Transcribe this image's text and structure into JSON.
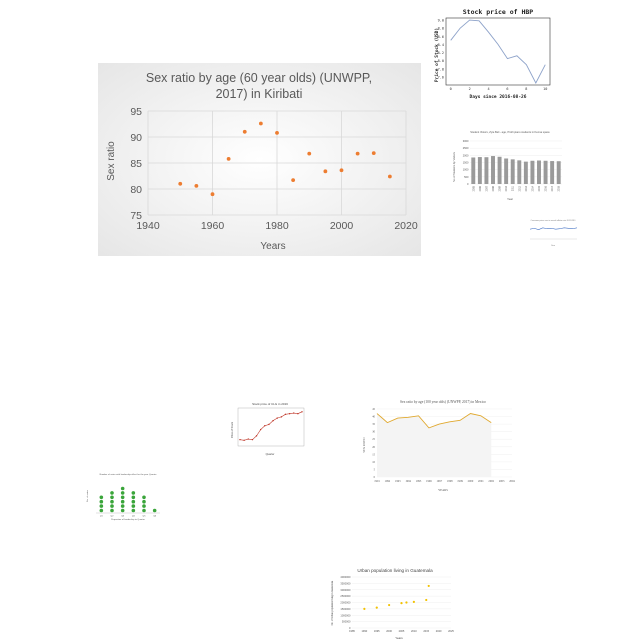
{
  "charts": {
    "kiribati": {
      "title_line1": "Sex ratio by age (60 year olds) (UNWPP,",
      "title_line2": "2017) in Kiribati",
      "xlabel": "Years",
      "ylabel": "Sex ratio",
      "colors": {
        "marker": "#ED7D31",
        "bg_center": "#ffffff",
        "bg_edge": "#e8e8e8",
        "grid": "#d9d9d9",
        "text": "#595959"
      },
      "chart_data": {
        "type": "scatter",
        "x": [
          1950,
          1955,
          1960,
          1965,
          1970,
          1975,
          1980,
          1985,
          1990,
          1995,
          2000,
          2005,
          2010,
          2015
        ],
        "y": [
          81,
          80.6,
          79,
          85.8,
          91,
          92.6,
          90.8,
          81.7,
          86.8,
          83.4,
          83.6,
          86.8,
          86.9,
          82.4
        ],
        "xlim": [
          1940,
          2020
        ],
        "ylim": [
          75,
          95
        ],
        "xticks": [
          1940,
          1960,
          1980,
          2000,
          2020
        ],
        "yticks": [
          75,
          80,
          85,
          90,
          95
        ],
        "grid": true
      }
    },
    "hbp": {
      "title": "Stock price of HBP",
      "xlabel": "Days since 2016-08-26",
      "ylabel": "Price of Stock (USD)",
      "colors": {
        "line": "#8da2c9",
        "axis": "#333333"
      },
      "chart_data": {
        "type": "line",
        "x": [
          0,
          1,
          2,
          3,
          4,
          5,
          6,
          7,
          8,
          9,
          10
        ],
        "y": [
          8.5,
          8.8,
          9.0,
          8.98,
          8.7,
          8.4,
          8.05,
          8.12,
          7.9,
          7.45,
          7.9
        ],
        "xlim": [
          -0.5,
          10.5
        ],
        "ylim": [
          7.4,
          9.05
        ],
        "xticks": [
          0,
          2,
          4,
          6,
          8,
          10
        ],
        "yticks": [
          7.6,
          7.8,
          8.0,
          8.2,
          8.4,
          8.6,
          8.8,
          9.0
        ]
      }
    },
    "gray_bars": {
      "title": "Student Vistors, Zyte Beli - age, Profit piano students in Kenna space",
      "xlabel": "Year",
      "ylabel": "No of Students by Visitors",
      "colors": {
        "bar": "#9a9a9a",
        "grid": "#e2e2e2"
      },
      "chart_data": {
        "type": "bar",
        "categories": [
          "2005",
          "2006",
          "2007",
          "2008",
          "2009",
          "2010",
          "2011",
          "2012",
          "2013",
          "2014",
          "2015",
          "2016",
          "2017",
          "2018"
        ],
        "values": [
          1850,
          1880,
          1870,
          1950,
          1900,
          1780,
          1720,
          1650,
          1560,
          1620,
          1640,
          1620,
          1600,
          1590
        ],
        "ylim": [
          0,
          3000
        ],
        "yticks": [
          0,
          500,
          1000,
          1500,
          2000,
          2500,
          3000
        ]
      }
    },
    "tiny_blue": {
      "title": "Consumer prices rose in annual inflation rate 2012-2019",
      "xlabel": "Year",
      "colors": {
        "line": "#4472c4"
      },
      "chart_data": {
        "type": "line",
        "x": [
          1,
          2,
          3,
          4,
          5,
          6,
          7,
          8,
          9,
          10,
          11,
          12
        ],
        "y": [
          2.1,
          2.3,
          2.0,
          2.4,
          2.2,
          2.3,
          2.1,
          2.2,
          2.4,
          2.3,
          2.2,
          2.4
        ],
        "ylim": [
          0,
          3
        ]
      }
    },
    "fiji": {
      "title": "Stock price of CLG in 2016",
      "xlabel": "Quarter",
      "ylabel": "Price of Stock",
      "colors": {
        "line": "#c0392b",
        "marker": "#c0392b"
      },
      "chart_data": {
        "type": "line",
        "x": [
          0,
          1,
          2,
          3,
          4,
          5,
          6,
          7,
          8,
          9,
          10,
          11,
          12,
          13,
          14,
          15
        ],
        "y": [
          10,
          9.5,
          10.5,
          10,
          13,
          18,
          21,
          22,
          25,
          27,
          28,
          30,
          30.5,
          31,
          30.5,
          32
        ],
        "ylim": [
          5,
          35
        ]
      }
    },
    "mexico": {
      "title": "Sex ratio by age (100 year olds) (UNWPP, 2017) in Mexico",
      "xlabel": "YEARS",
      "ylabel": "SEX RATIO",
      "colors": {
        "line": "#e0a82e",
        "grid": "#e6e6e6",
        "area_top": "#f3f3f3"
      },
      "chart_data": {
        "type": "line",
        "categories": [
          "1991",
          "1992",
          "1993",
          "1994",
          "1995",
          "1996",
          "1997",
          "1998",
          "1999",
          "2000",
          "2001",
          "2002",
          "2003",
          "2004"
        ],
        "values": [
          42,
          36,
          39,
          39.5,
          40.5,
          32.5,
          35,
          36.5,
          37.5,
          42,
          40.5,
          36,
          null,
          null
        ],
        "ylim": [
          0,
          45
        ],
        "yticks": [
          0,
          5,
          10,
          15,
          20,
          25,
          30,
          35,
          40,
          45
        ]
      }
    },
    "green_dots": {
      "title": "Number of votes with leadership effect for the year Quarter",
      "xlabel": "Proportion of leadership to Quarter",
      "ylabel": "No. of votes",
      "colors": {
        "marker": "#3aa53a"
      },
      "chart_data": {
        "type": "scatter",
        "categories": [
          "Q1",
          "Q2",
          "Q3",
          "Q4",
          "Q5",
          "Q6"
        ],
        "values": [
          4,
          5,
          6,
          5,
          4,
          1
        ],
        "ylim": [
          0,
          7
        ]
      }
    },
    "guatemala": {
      "title": "Urban population living in Guatemala",
      "xlabel": "Years",
      "ylabel": "No. of Urban population living in Guatemala",
      "colors": {
        "marker": "#f2c100",
        "grid": "#e4e4e4"
      },
      "chart_data": {
        "type": "scatter",
        "x": [
          1990,
          1995,
          2000,
          2005,
          2007,
          2010,
          2015,
          2016
        ],
        "y": [
          1500000,
          1600000,
          1800000,
          1950000,
          2000000,
          2050000,
          2200000,
          3300000
        ],
        "xlim": [
          1985,
          2025
        ],
        "ylim": [
          0,
          4000000
        ],
        "xticks": [
          1985,
          1990,
          1995,
          2000,
          2005,
          2010,
          2015,
          2020,
          2025
        ],
        "yticks": [
          0,
          500000,
          1000000,
          1500000,
          2000000,
          2500000,
          3000000,
          3500000,
          4000000
        ]
      }
    }
  }
}
